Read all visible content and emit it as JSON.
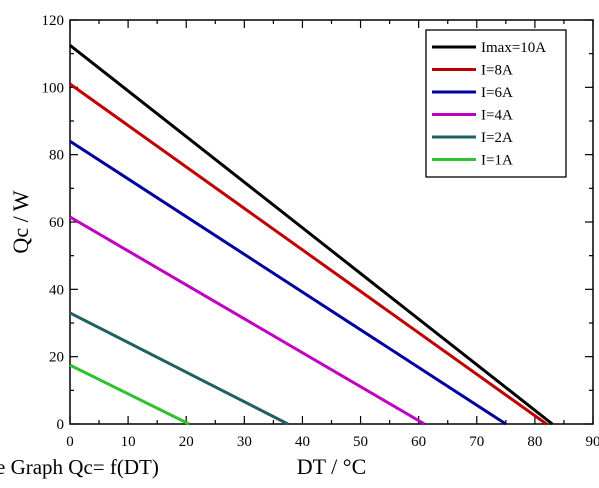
{
  "caption": "e Graph Qc= f(DT)",
  "chart_data": {
    "type": "line",
    "xlabel": "DT / °C",
    "ylabel": "Qc / W",
    "xlim": [
      0,
      90
    ],
    "ylim": [
      0,
      120
    ],
    "xticks": [
      "0",
      "10",
      "20",
      "30",
      "40",
      "50",
      "60",
      "70",
      "80",
      "90"
    ],
    "yticks": [
      "0",
      "20",
      "40",
      "60",
      "80",
      "100",
      "120"
    ],
    "grid": false,
    "legend_position": "top-right",
    "series": [
      {
        "name": "Imax=10A",
        "color": "#000000",
        "x": [
          0,
          83
        ],
        "y": [
          112.5,
          0
        ]
      },
      {
        "name": "I=8A",
        "color": "#c00000",
        "x": [
          0,
          82
        ],
        "y": [
          101,
          0
        ]
      },
      {
        "name": "I=6A",
        "color": "#0000a0",
        "x": [
          0,
          75
        ],
        "y": [
          84,
          0
        ]
      },
      {
        "name": "I=4A",
        "color": "#c000c0",
        "x": [
          0,
          61
        ],
        "y": [
          61.5,
          0
        ]
      },
      {
        "name": "I=2A",
        "color": "#206060",
        "x": [
          0,
          37.5
        ],
        "y": [
          33,
          0
        ]
      },
      {
        "name": "I=1A",
        "color": "#30c030",
        "x": [
          0,
          20.5
        ],
        "y": [
          17.5,
          0
        ]
      }
    ]
  }
}
